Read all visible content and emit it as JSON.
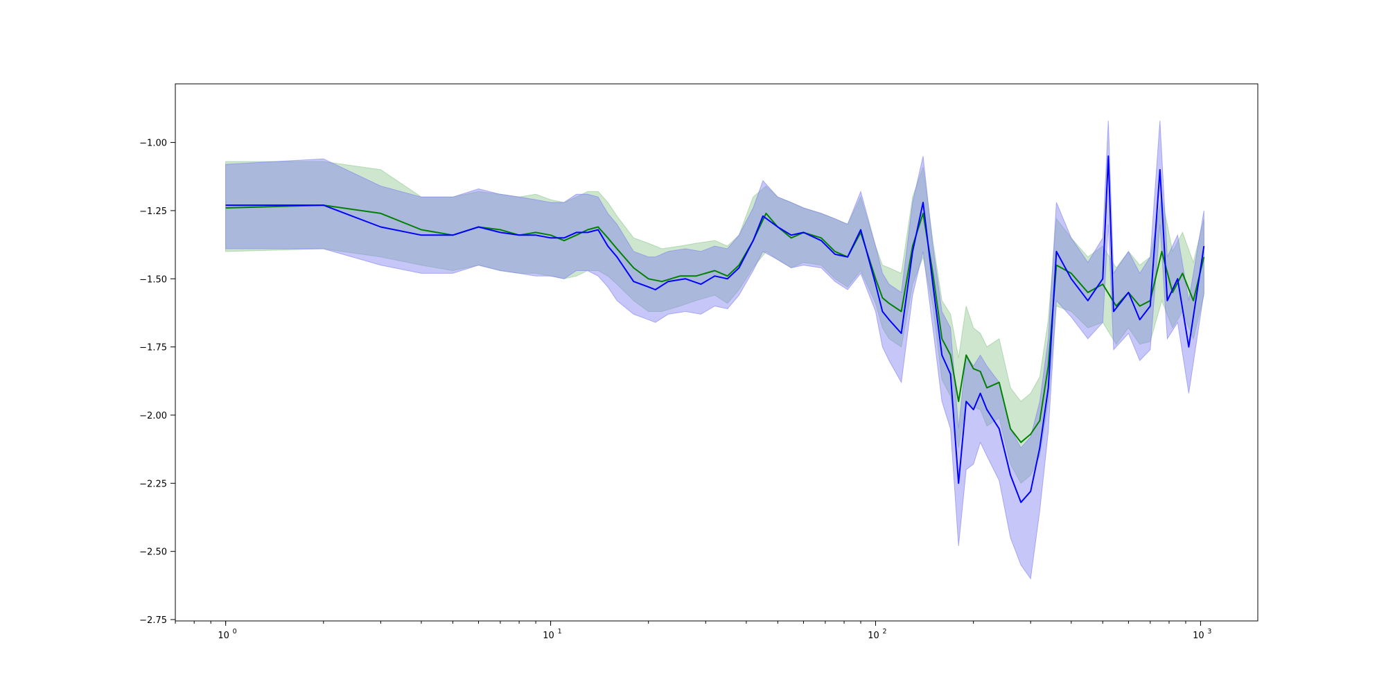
{
  "chart_data": {
    "type": "line",
    "title": "",
    "xlabel": "",
    "ylabel": "",
    "xscale": "log",
    "xlim": [
      0.7,
      1500
    ],
    "ylim": [
      -2.755,
      -0.785
    ],
    "grid": false,
    "legend": "none",
    "x_ticks": [
      {
        "value": 1,
        "base": "10",
        "exp": "0"
      },
      {
        "value": 10,
        "base": "10",
        "exp": "1"
      },
      {
        "value": 100,
        "base": "10",
        "exp": "2"
      },
      {
        "value": 1000,
        "base": "10",
        "exp": "3"
      }
    ],
    "y_ticks": [
      {
        "value": -1.0,
        "label": "−1.00"
      },
      {
        "value": -1.25,
        "label": "−1.25"
      },
      {
        "value": -1.5,
        "label": "−1.50"
      },
      {
        "value": -1.75,
        "label": "−1.75"
      },
      {
        "value": -2.0,
        "label": "−2.00"
      },
      {
        "value": -2.25,
        "label": "−2.25"
      },
      {
        "value": -2.5,
        "label": "−2.50"
      },
      {
        "value": -2.75,
        "label": "−2.75"
      }
    ],
    "series": [
      {
        "color": "#008000",
        "band_color": "#90c890",
        "points": [
          [
            1,
            -1.24,
            -1.07,
            -1.4
          ],
          [
            2,
            -1.23,
            -1.07,
            -1.39
          ],
          [
            3,
            -1.26,
            -1.1,
            -1.42
          ],
          [
            4,
            -1.32,
            -1.2,
            -1.45
          ],
          [
            5,
            -1.34,
            -1.2,
            -1.47
          ],
          [
            6,
            -1.31,
            -1.18,
            -1.45
          ],
          [
            7,
            -1.32,
            -1.19,
            -1.47
          ],
          [
            8,
            -1.34,
            -1.2,
            -1.48
          ],
          [
            9,
            -1.33,
            -1.19,
            -1.48
          ],
          [
            10,
            -1.34,
            -1.21,
            -1.49
          ],
          [
            11,
            -1.36,
            -1.22,
            -1.5
          ],
          [
            12,
            -1.34,
            -1.2,
            -1.49
          ],
          [
            13,
            -1.32,
            -1.18,
            -1.47
          ],
          [
            14,
            -1.31,
            -1.18,
            -1.47
          ],
          [
            15,
            -1.35,
            -1.22,
            -1.49
          ],
          [
            16,
            -1.39,
            -1.27,
            -1.52
          ],
          [
            18,
            -1.46,
            -1.35,
            -1.58
          ],
          [
            20,
            -1.5,
            -1.37,
            -1.62
          ],
          [
            22,
            -1.51,
            -1.39,
            -1.62
          ],
          [
            25,
            -1.49,
            -1.38,
            -1.6
          ],
          [
            28,
            -1.49,
            -1.37,
            -1.58
          ],
          [
            32,
            -1.47,
            -1.36,
            -1.56
          ],
          [
            35,
            -1.49,
            -1.38,
            -1.59
          ],
          [
            38,
            -1.45,
            -1.34,
            -1.54
          ],
          [
            42,
            -1.36,
            -1.2,
            -1.46
          ],
          [
            46,
            -1.26,
            -1.16,
            -1.4
          ],
          [
            50,
            -1.31,
            -1.2,
            -1.43
          ],
          [
            55,
            -1.35,
            -1.22,
            -1.46
          ],
          [
            60,
            -1.33,
            -1.24,
            -1.44
          ],
          [
            68,
            -1.35,
            -1.26,
            -1.45
          ],
          [
            75,
            -1.4,
            -1.28,
            -1.5
          ],
          [
            82,
            -1.42,
            -1.3,
            -1.53
          ],
          [
            90,
            -1.33,
            -1.2,
            -1.47
          ],
          [
            100,
            -1.5,
            -1.38,
            -1.59
          ],
          [
            105,
            -1.57,
            -1.45,
            -1.68
          ],
          [
            110,
            -1.59,
            -1.46,
            -1.72
          ],
          [
            120,
            -1.62,
            -1.48,
            -1.75
          ],
          [
            130,
            -1.38,
            -1.2,
            -1.52
          ],
          [
            140,
            -1.26,
            -1.09,
            -1.42
          ],
          [
            150,
            -1.48,
            -1.36,
            -1.6
          ],
          [
            160,
            -1.72,
            -1.58,
            -1.87
          ],
          [
            170,
            -1.78,
            -1.63,
            -1.93
          ],
          [
            180,
            -1.95,
            -1.79,
            -2.12
          ],
          [
            190,
            -1.78,
            -1.6,
            -1.95
          ],
          [
            200,
            -1.83,
            -1.68,
            -1.97
          ],
          [
            210,
            -1.84,
            -1.7,
            -1.98
          ],
          [
            220,
            -1.9,
            -1.75,
            -2.04
          ],
          [
            240,
            -1.88,
            -1.72,
            -2.01
          ],
          [
            260,
            -2.05,
            -1.9,
            -2.18
          ],
          [
            280,
            -2.1,
            -1.95,
            -2.25
          ],
          [
            300,
            -2.07,
            -1.92,
            -2.22
          ],
          [
            320,
            -2.02,
            -1.86,
            -2.15
          ],
          [
            340,
            -1.82,
            -1.65,
            -1.95
          ],
          [
            360,
            -1.45,
            -1.28,
            -1.6
          ],
          [
            400,
            -1.48,
            -1.35,
            -1.62
          ],
          [
            450,
            -1.55,
            -1.42,
            -1.68
          ],
          [
            500,
            -1.52,
            -1.38,
            -1.66
          ],
          [
            550,
            -1.6,
            -1.46,
            -1.74
          ],
          [
            600,
            -1.55,
            -1.4,
            -1.68
          ],
          [
            650,
            -1.6,
            -1.45,
            -1.74
          ],
          [
            700,
            -1.58,
            -1.42,
            -1.73
          ],
          [
            760,
            -1.4,
            -1.2,
            -1.58
          ],
          [
            820,
            -1.55,
            -1.4,
            -1.68
          ],
          [
            880,
            -1.48,
            -1.33,
            -1.62
          ],
          [
            950,
            -1.58,
            -1.44,
            -1.72
          ],
          [
            1024,
            -1.42,
            -1.28,
            -1.56
          ]
        ]
      },
      {
        "color": "#0000ff",
        "band_color": "#8080f0",
        "points": [
          [
            1,
            -1.23,
            -1.08,
            -1.39
          ],
          [
            2,
            -1.23,
            -1.06,
            -1.39
          ],
          [
            3,
            -1.31,
            -1.16,
            -1.45
          ],
          [
            4,
            -1.34,
            -1.2,
            -1.48
          ],
          [
            5,
            -1.34,
            -1.2,
            -1.48
          ],
          [
            6,
            -1.31,
            -1.17,
            -1.45
          ],
          [
            7,
            -1.33,
            -1.19,
            -1.47
          ],
          [
            8,
            -1.34,
            -1.2,
            -1.48
          ],
          [
            9,
            -1.34,
            -1.21,
            -1.49
          ],
          [
            10,
            -1.35,
            -1.22,
            -1.49
          ],
          [
            11,
            -1.35,
            -1.22,
            -1.5
          ],
          [
            12,
            -1.33,
            -1.19,
            -1.47
          ],
          [
            13,
            -1.33,
            -1.19,
            -1.47
          ],
          [
            14,
            -1.32,
            -1.2,
            -1.49
          ],
          [
            15,
            -1.38,
            -1.26,
            -1.53
          ],
          [
            16,
            -1.42,
            -1.3,
            -1.58
          ],
          [
            18,
            -1.51,
            -1.4,
            -1.63
          ],
          [
            20,
            -1.53,
            -1.42,
            -1.65
          ],
          [
            21,
            -1.54,
            -1.42,
            -1.66
          ],
          [
            23,
            -1.51,
            -1.4,
            -1.63
          ],
          [
            26,
            -1.5,
            -1.39,
            -1.62
          ],
          [
            29,
            -1.52,
            -1.4,
            -1.63
          ],
          [
            32,
            -1.49,
            -1.38,
            -1.6
          ],
          [
            35,
            -1.5,
            -1.39,
            -1.61
          ],
          [
            38,
            -1.46,
            -1.34,
            -1.56
          ],
          [
            42,
            -1.36,
            -1.24,
            -1.47
          ],
          [
            45,
            -1.27,
            -1.14,
            -1.4
          ],
          [
            50,
            -1.31,
            -1.2,
            -1.43
          ],
          [
            55,
            -1.34,
            -1.22,
            -1.46
          ],
          [
            60,
            -1.33,
            -1.24,
            -1.45
          ],
          [
            68,
            -1.36,
            -1.26,
            -1.46
          ],
          [
            75,
            -1.41,
            -1.28,
            -1.51
          ],
          [
            82,
            -1.42,
            -1.3,
            -1.54
          ],
          [
            90,
            -1.32,
            -1.18,
            -1.48
          ],
          [
            100,
            -1.52,
            -1.38,
            -1.62
          ],
          [
            105,
            -1.62,
            -1.48,
            -1.75
          ],
          [
            110,
            -1.65,
            -1.52,
            -1.8
          ],
          [
            120,
            -1.7,
            -1.55,
            -1.88
          ],
          [
            130,
            -1.4,
            -1.22,
            -1.56
          ],
          [
            140,
            -1.22,
            -1.05,
            -1.4
          ],
          [
            150,
            -1.52,
            -1.38,
            -1.68
          ],
          [
            160,
            -1.78,
            -1.62,
            -1.95
          ],
          [
            170,
            -1.85,
            -1.68,
            -2.05
          ],
          [
            180,
            -2.25,
            -2.05,
            -2.48
          ],
          [
            190,
            -1.95,
            -1.78,
            -2.2
          ],
          [
            200,
            -1.98,
            -1.82,
            -2.18
          ],
          [
            210,
            -1.92,
            -1.78,
            -2.1
          ],
          [
            220,
            -1.98,
            -1.82,
            -2.15
          ],
          [
            240,
            -2.05,
            -1.88,
            -2.24
          ],
          [
            260,
            -2.22,
            -2.05,
            -2.45
          ],
          [
            280,
            -2.32,
            -2.12,
            -2.55
          ],
          [
            300,
            -2.28,
            -2.08,
            -2.6
          ],
          [
            320,
            -2.12,
            -1.95,
            -2.35
          ],
          [
            340,
            -1.9,
            -1.72,
            -2.06
          ],
          [
            360,
            -1.4,
            -1.22,
            -1.58
          ],
          [
            400,
            -1.5,
            -1.35,
            -1.64
          ],
          [
            450,
            -1.58,
            -1.44,
            -1.72
          ],
          [
            500,
            -1.5,
            -1.35,
            -1.66
          ],
          [
            520,
            -1.05,
            -0.92,
            -1.3
          ],
          [
            540,
            -1.62,
            -1.48,
            -1.76
          ],
          [
            600,
            -1.55,
            -1.4,
            -1.7
          ],
          [
            650,
            -1.65,
            -1.48,
            -1.8
          ],
          [
            700,
            -1.6,
            -1.42,
            -1.76
          ],
          [
            750,
            -1.1,
            -0.92,
            -1.3
          ],
          [
            790,
            -1.58,
            -1.42,
            -1.72
          ],
          [
            850,
            -1.5,
            -1.34,
            -1.66
          ],
          [
            920,
            -1.75,
            -1.58,
            -1.92
          ],
          [
            1024,
            -1.38,
            -1.25,
            -1.55
          ]
        ]
      }
    ]
  }
}
